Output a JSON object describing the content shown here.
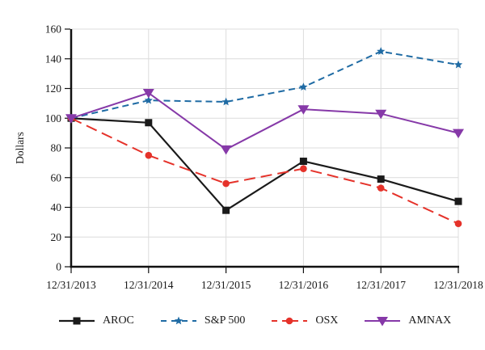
{
  "chart_data": {
    "type": "line",
    "title": "",
    "xlabel": "",
    "ylabel": "Dollars",
    "ylim": [
      0,
      160
    ],
    "yticks": [
      0,
      20,
      40,
      60,
      80,
      100,
      120,
      140,
      160
    ],
    "categories": [
      "12/31/2013",
      "12/31/2014",
      "12/31/2015",
      "12/31/2016",
      "12/31/2017",
      "12/31/2018"
    ],
    "series": [
      {
        "name": "AROC",
        "values": [
          100,
          97,
          38,
          71,
          59,
          44
        ],
        "color": "#1a1a1a",
        "marker": "square",
        "dasharray": "",
        "width": 2.2
      },
      {
        "name": "S&P 500",
        "values": [
          100,
          112,
          111,
          121,
          145,
          136
        ],
        "color": "#1f6ba4",
        "marker": "star",
        "dasharray": "8,5",
        "width": 2
      },
      {
        "name": "OSX",
        "values": [
          100,
          75,
          56,
          66,
          53,
          29
        ],
        "color": "#e5322a",
        "marker": "circle",
        "dasharray": "14,7",
        "width": 2
      },
      {
        "name": "AMNAX",
        "values": [
          100,
          117,
          79,
          106,
          103,
          90
        ],
        "color": "#8639a8",
        "marker": "triangle-down",
        "dasharray": "",
        "width": 2
      }
    ],
    "grid": true,
    "grid_color": "#dcdcdc",
    "axis_color": "#111111",
    "legend_position": "bottom"
  }
}
